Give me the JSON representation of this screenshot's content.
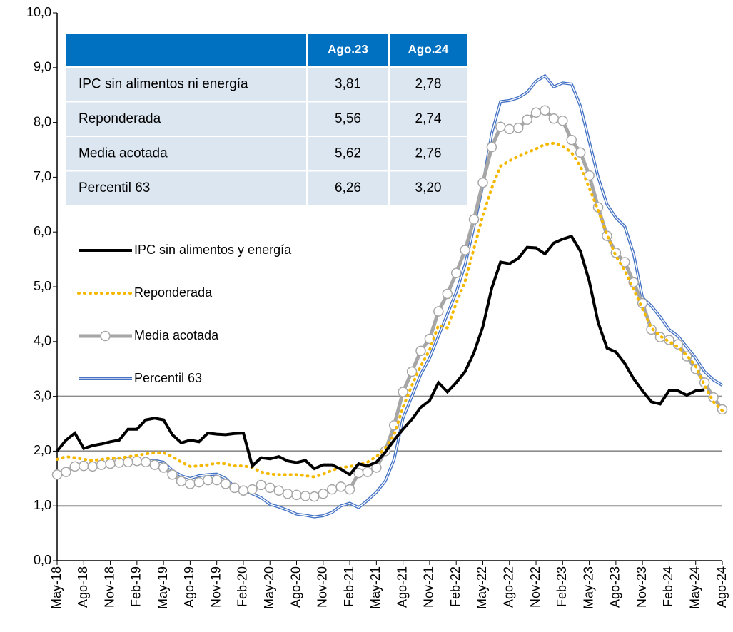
{
  "chart_data": {
    "type": "line",
    "categories": [
      "May-18",
      null,
      null,
      "Ago-18",
      null,
      null,
      "Nov-18",
      null,
      null,
      "Feb-19",
      null,
      null,
      "May-19",
      null,
      null,
      "Ago-19",
      null,
      null,
      "Nov-19",
      null,
      null,
      "Feb-20",
      null,
      null,
      "May-20",
      null,
      null,
      "Ago-20",
      null,
      null,
      "Nov-20",
      null,
      null,
      "Feb-21",
      null,
      null,
      "May-21",
      null,
      null,
      "Ago-21",
      null,
      null,
      "Nov-21",
      null,
      null,
      "Feb-22",
      null,
      null,
      "May-22",
      null,
      null,
      "Ago-22",
      null,
      null,
      "Nov-22",
      null,
      null,
      "Feb-23",
      null,
      null,
      "May-23",
      null,
      null,
      "Ago-23",
      null,
      null,
      "Nov-23",
      null,
      null,
      "Feb-24",
      null,
      null,
      "May-24",
      null,
      null,
      "Ago-24"
    ],
    "ylim": [
      0,
      10
    ],
    "yticks": [
      {
        "value": 0,
        "label": "0,0"
      },
      {
        "value": 1,
        "label": "1,0"
      },
      {
        "value": 2,
        "label": "2,0"
      },
      {
        "value": 3,
        "label": "3,0"
      },
      {
        "value": 4,
        "label": "4,0"
      },
      {
        "value": 5,
        "label": "5,0"
      },
      {
        "value": 6,
        "label": "6,0"
      },
      {
        "value": 7,
        "label": "7,0"
      },
      {
        "value": 8,
        "label": "8,0"
      },
      {
        "value": 9,
        "label": "9,0"
      },
      {
        "value": 10,
        "label": "10,0"
      }
    ],
    "hlines": [
      1,
      2,
      3
    ],
    "legend": "left",
    "series": [
      {
        "name": "IPC sin alimentos y energía",
        "color": "#000000",
        "style": "solid",
        "values": [
          2.0,
          2.2,
          2.33,
          2.05,
          2.1,
          2.13,
          2.17,
          2.2,
          2.4,
          2.4,
          2.57,
          2.6,
          2.57,
          2.3,
          2.15,
          2.2,
          2.17,
          2.33,
          2.31,
          2.3,
          2.32,
          2.33,
          1.73,
          1.88,
          1.86,
          1.9,
          1.82,
          1.79,
          1.83,
          1.68,
          1.75,
          1.75,
          1.67,
          1.57,
          1.77,
          1.73,
          1.8,
          1.98,
          2.2,
          2.4,
          2.58,
          2.8,
          2.92,
          3.25,
          3.08,
          3.25,
          3.45,
          3.8,
          4.27,
          4.97,
          5.45,
          5.42,
          5.52,
          5.72,
          5.71,
          5.6,
          5.8,
          5.87,
          5.92,
          5.65,
          5.1,
          4.35,
          3.88,
          3.81,
          3.6,
          3.32,
          3.1,
          2.9,
          2.86,
          3.1,
          3.1,
          3.02,
          3.1,
          3.12,
          null,
          null
        ]
      },
      {
        "name": "Reponderada",
        "color": "#f5b800",
        "style": "dotted",
        "values": [
          1.85,
          1.9,
          1.88,
          1.85,
          1.83,
          1.85,
          1.87,
          1.87,
          1.9,
          1.92,
          1.95,
          1.97,
          1.97,
          1.9,
          1.8,
          1.72,
          1.73,
          1.75,
          1.78,
          1.77,
          1.73,
          1.73,
          1.7,
          1.62,
          1.58,
          1.57,
          1.57,
          1.57,
          1.55,
          1.53,
          1.58,
          1.65,
          1.7,
          1.72,
          1.75,
          1.8,
          1.9,
          2.05,
          2.3,
          2.8,
          3.2,
          3.55,
          3.85,
          4.3,
          4.25,
          4.7,
          5.1,
          5.7,
          6.3,
          6.8,
          7.2,
          7.3,
          7.38,
          7.45,
          7.52,
          7.6,
          7.62,
          7.57,
          7.45,
          7.2,
          6.8,
          6.4,
          5.95,
          5.56,
          5.3,
          4.95,
          4.6,
          4.25,
          4.1,
          4.0,
          3.9,
          3.75,
          3.55,
          3.2,
          2.9,
          2.74
        ]
      },
      {
        "name": "Media acotada",
        "color": "#a6a6a6",
        "style": "markers",
        "values": [
          1.57,
          1.62,
          1.72,
          1.73,
          1.72,
          1.75,
          1.77,
          1.79,
          1.8,
          1.82,
          1.8,
          1.75,
          1.7,
          1.57,
          1.45,
          1.4,
          1.43,
          1.47,
          1.47,
          1.4,
          1.33,
          1.28,
          1.3,
          1.38,
          1.33,
          1.28,
          1.22,
          1.2,
          1.18,
          1.17,
          1.22,
          1.3,
          1.35,
          1.3,
          1.6,
          1.62,
          1.7,
          2.0,
          2.47,
          3.08,
          3.45,
          3.83,
          4.05,
          4.55,
          4.87,
          5.25,
          5.67,
          6.23,
          6.9,
          7.55,
          7.92,
          7.88,
          7.9,
          8.05,
          8.18,
          8.22,
          8.07,
          8.03,
          7.68,
          7.45,
          7.03,
          6.45,
          5.93,
          5.62,
          5.45,
          5.08,
          4.7,
          4.22,
          4.08,
          4.03,
          3.95,
          3.73,
          3.5,
          3.25,
          2.98,
          2.76
        ]
      },
      {
        "name": "Percentil 63",
        "color": "#4472c4",
        "style": "double",
        "values": [
          1.57,
          1.65,
          1.7,
          1.7,
          1.7,
          1.73,
          1.77,
          1.78,
          1.8,
          1.82,
          1.83,
          1.83,
          1.8,
          1.65,
          1.55,
          1.5,
          1.55,
          1.57,
          1.58,
          1.5,
          1.35,
          1.28,
          1.22,
          1.15,
          1.03,
          0.98,
          0.92,
          0.85,
          0.83,
          0.8,
          0.82,
          0.88,
          1.0,
          1.05,
          0.97,
          1.1,
          1.25,
          1.45,
          1.85,
          2.6,
          3.0,
          3.4,
          3.7,
          4.1,
          4.5,
          4.9,
          5.4,
          6.1,
          6.85,
          7.8,
          8.38,
          8.4,
          8.45,
          8.55,
          8.75,
          8.85,
          8.65,
          8.72,
          8.7,
          8.3,
          7.65,
          7.0,
          6.5,
          6.26,
          6.1,
          5.6,
          4.8,
          4.65,
          4.45,
          4.22,
          4.1,
          3.9,
          3.7,
          3.45,
          3.3,
          3.2
        ]
      }
    ],
    "table": {
      "header": [
        "Ago.23",
        "Ago.24"
      ],
      "rows": [
        [
          "IPC sin alimentos ni energía",
          "3,81",
          "2,78"
        ],
        [
          "Reponderada",
          "5,56",
          "2,74"
        ],
        [
          "Media acotada",
          "5,62",
          "2,76"
        ],
        [
          "Percentil 63",
          "6,26",
          "3,20"
        ]
      ]
    }
  }
}
